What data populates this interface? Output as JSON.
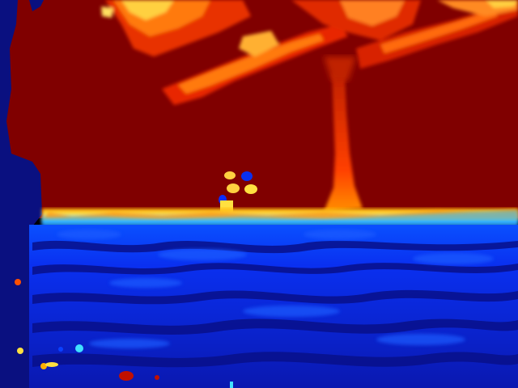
{
  "image": {
    "kind": "false-color depth map",
    "colormap": "jet",
    "palette": {
      "dark_red": "#800000",
      "red": "#d01800",
      "orange": "#ff6a00",
      "yellow": "#ffe040",
      "cyan": "#40e0ff",
      "blue": "#0a2cff",
      "mid_blue": "#0a1ed8",
      "dark_blue": "#08108a",
      "navy": "#0a1080"
    },
    "regions": [
      "sky",
      "tree-canopy",
      "tree-trunk",
      "horizon-band",
      "ground",
      "left-foreground-edge"
    ]
  }
}
